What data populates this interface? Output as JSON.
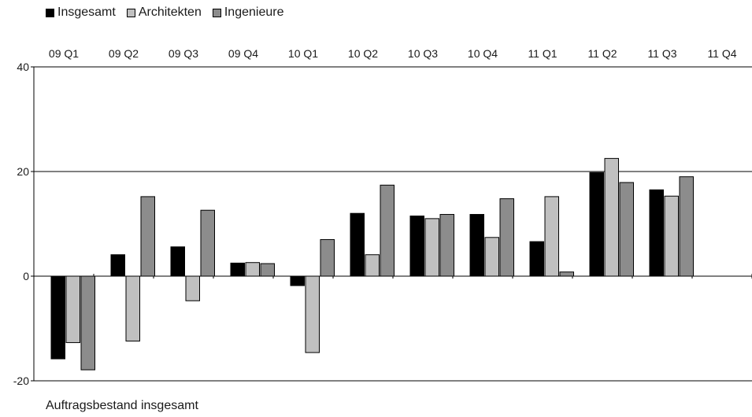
{
  "chart_data": {
    "type": "bar",
    "title": "",
    "caption": "Auftragsbestand insgesamt",
    "xlabel": "",
    "ylabel": "",
    "categories": [
      "09 Q1",
      "09 Q2",
      "09 Q3",
      "09 Q4",
      "10 Q1",
      "10 Q2",
      "10 Q3",
      "10 Q4",
      "11 Q1",
      "11 Q2",
      "11 Q3",
      "11 Q4"
    ],
    "series": [
      {
        "name": "Insgesamt",
        "color": "#000000",
        "values": [
          -15.8,
          4.1,
          5.6,
          2.5,
          -1.8,
          12.0,
          11.5,
          11.8,
          6.6,
          19.8,
          16.5,
          null
        ]
      },
      {
        "name": "Architekten",
        "color": "#c0c0c0",
        "values": [
          -12.7,
          -12.4,
          -4.7,
          2.6,
          -14.6,
          4.1,
          11.0,
          7.4,
          15.2,
          22.5,
          15.3,
          null
        ]
      },
      {
        "name": "Ingenieure",
        "color": "#8c8c8c",
        "values": [
          -17.9,
          15.2,
          12.6,
          2.4,
          7.0,
          17.4,
          11.8,
          14.8,
          0.8,
          17.9,
          19.0,
          null
        ]
      }
    ],
    "ylim": [
      -20,
      40
    ],
    "yticks": [
      -20,
      0,
      20,
      40
    ],
    "category_axis_position": "top",
    "grid": "horizontal",
    "legend": "top-left"
  }
}
